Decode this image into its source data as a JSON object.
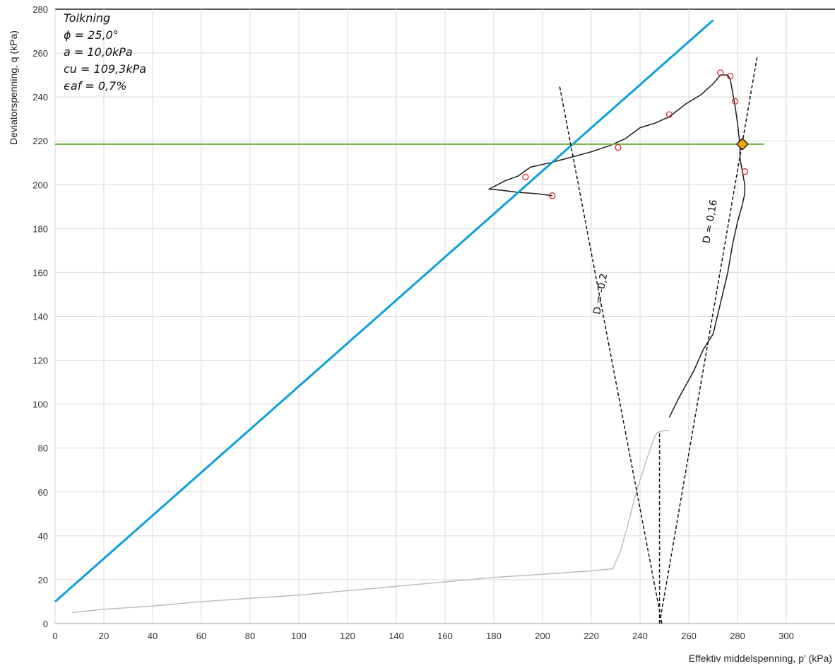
{
  "chart_data": {
    "type": "line",
    "xlabel": "Effektiv middelspenning, p' (kPa)",
    "ylabel": "Deviatorspenning, q (kPa)",
    "xlim": [
      0,
      320
    ],
    "ylim": [
      0,
      280
    ],
    "x_ticks": [
      "0",
      "20",
      "40",
      "60",
      "80",
      "100",
      "120",
      "140",
      "160",
      "180",
      "200",
      "220",
      "240",
      "260",
      "280",
      "300"
    ],
    "y_ticks": [
      "0",
      "20",
      "40",
      "60",
      "80",
      "100",
      "120",
      "140",
      "160",
      "180",
      "200",
      "220",
      "240",
      "260",
      "280"
    ],
    "grid": true,
    "interpretation": {
      "title": "Tolkning",
      "phi": "ϕ = 25,0°",
      "a": "a = 10,0kPa",
      "cu": "cu = 109,3kPa",
      "eaf": "ϵaf = 0,7%"
    },
    "series": [
      {
        "color": "#bdbdbd",
        "points": [
          [
            7,
            5
          ],
          [
            20,
            6.5
          ],
          [
            40,
            8
          ],
          [
            60,
            10
          ],
          [
            80,
            11.5
          ],
          [
            100,
            13
          ],
          [
            120,
            15
          ],
          [
            140,
            17
          ],
          [
            160,
            19
          ],
          [
            180,
            21
          ],
          [
            200,
            22.5
          ],
          [
            220,
            24
          ],
          [
            229,
            25
          ],
          [
            229,
            25.5
          ],
          [
            232,
            33
          ],
          [
            235,
            45
          ],
          [
            238,
            58
          ],
          [
            241,
            69
          ],
          [
            244,
            79
          ],
          [
            246,
            85
          ],
          [
            247,
            87
          ],
          [
            250,
            88
          ],
          [
            252,
            88
          ]
        ]
      },
      {
        "color": "#1a1a1a",
        "points": [
          [
            252,
            94
          ],
          [
            256,
            103
          ],
          [
            262,
            115
          ],
          [
            266,
            125
          ],
          [
            270,
            132
          ],
          [
            273,
            146
          ],
          [
            276,
            160
          ],
          [
            278,
            173
          ],
          [
            280,
            183
          ],
          [
            282,
            191
          ],
          [
            283,
            196
          ],
          [
            283,
            200
          ],
          [
            282,
            206
          ],
          [
            281,
            212
          ],
          [
            281,
            218
          ],
          [
            280,
            228
          ],
          [
            279,
            236
          ],
          [
            278,
            242
          ],
          [
            277,
            248
          ],
          [
            276,
            250
          ],
          [
            273,
            250
          ],
          [
            270,
            246
          ],
          [
            265,
            241
          ],
          [
            259,
            237
          ],
          [
            252,
            231
          ],
          [
            246,
            228
          ],
          [
            240,
            226
          ],
          [
            234,
            221
          ],
          [
            228,
            218
          ],
          [
            220,
            215
          ],
          [
            210,
            212
          ],
          [
            203,
            210
          ],
          [
            195,
            208
          ],
          [
            190,
            204
          ],
          [
            185,
            202
          ],
          [
            178,
            198
          ],
          [
            183,
            197.5
          ],
          [
            190,
            196.5
          ],
          [
            197,
            196
          ],
          [
            204,
            195
          ]
        ]
      },
      {
        "color": "#0aa0dc",
        "points": [
          [
            0,
            10
          ],
          [
            270,
            275
          ]
        ]
      },
      {
        "color": "#6db33f",
        "points": [
          [
            0,
            218.5
          ],
          [
            291,
            218.5
          ]
        ]
      },
      {
        "color": "#111111",
        "dashed": true,
        "points": [
          [
            249,
            0
          ],
          [
            207,
            245
          ]
        ]
      },
      {
        "color": "#111111",
        "dashed": true,
        "points": [
          [
            248,
            0
          ],
          [
            288,
            258
          ]
        ]
      },
      {
        "color": "#111111",
        "dashed": true,
        "points": [
          [
            248,
            0
          ],
          [
            248,
            87
          ]
        ]
      }
    ],
    "markers": [
      [
        204,
        195
      ],
      [
        193,
        203.5
      ],
      [
        231,
        217
      ],
      [
        252,
        232
      ],
      [
        273,
        251
      ],
      [
        277,
        249.5
      ],
      [
        279,
        238
      ],
      [
        283,
        206
      ]
    ],
    "failure_point": [
      282,
      218.5
    ],
    "line_labels": [
      {
        "text": "D = -0,2",
        "at": [
          225,
          150
        ]
      },
      {
        "text": "D = 0,16",
        "at": [
          270,
          183
        ]
      }
    ]
  }
}
